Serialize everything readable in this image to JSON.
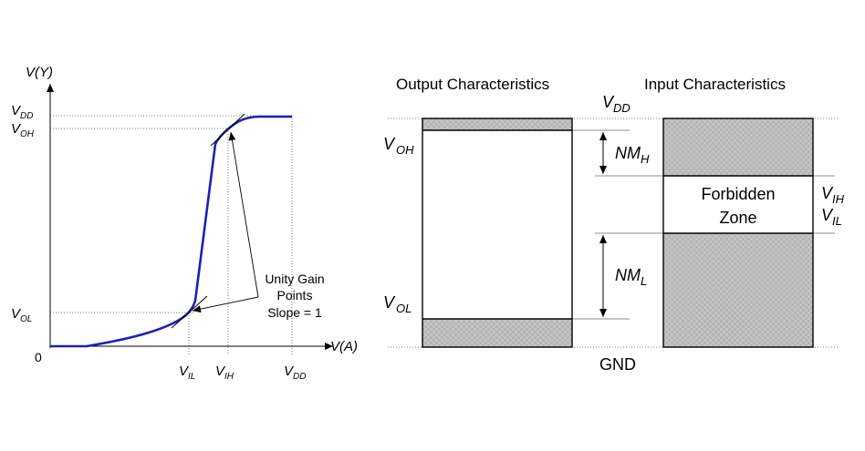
{
  "left_plot": {
    "y_axis_label": "V(Y)",
    "x_axis_label": "V(A)",
    "origin_label": "0",
    "y_ticks": {
      "vdd": {
        "main": "V",
        "sub": "DD"
      },
      "voh": {
        "main": "V",
        "sub": "OH"
      },
      "vol": {
        "main": "V",
        "sub": "OL"
      }
    },
    "x_ticks": {
      "vil": {
        "main": "V",
        "sub": "IL"
      },
      "vih": {
        "main": "V",
        "sub": "IH"
      },
      "vdd": {
        "main": "V",
        "sub": "DD"
      }
    },
    "annotation": {
      "line1": "Unity Gain",
      "line2": "Points",
      "line3": "Slope = 1"
    },
    "curve_color": "#1f1fb4"
  },
  "right_diagram": {
    "output_title": "Output Characteristics",
    "input_title": "Input Characteristics",
    "vdd": {
      "main": "V",
      "sub": "DD"
    },
    "voh": {
      "main": "V",
      "sub": "OH"
    },
    "vol": {
      "main": "V",
      "sub": "OL"
    },
    "vih": {
      "main": "V",
      "sub": "IH"
    },
    "vil": {
      "main": "V",
      "sub": "IL"
    },
    "nmh": {
      "main": "NM",
      "sub": "H"
    },
    "nml": {
      "main": "NM",
      "sub": "L"
    },
    "forbidden_line1": "Forbidden",
    "forbidden_line2": "Zone",
    "gnd": "GND",
    "fill_color": "#bdbdbd"
  }
}
